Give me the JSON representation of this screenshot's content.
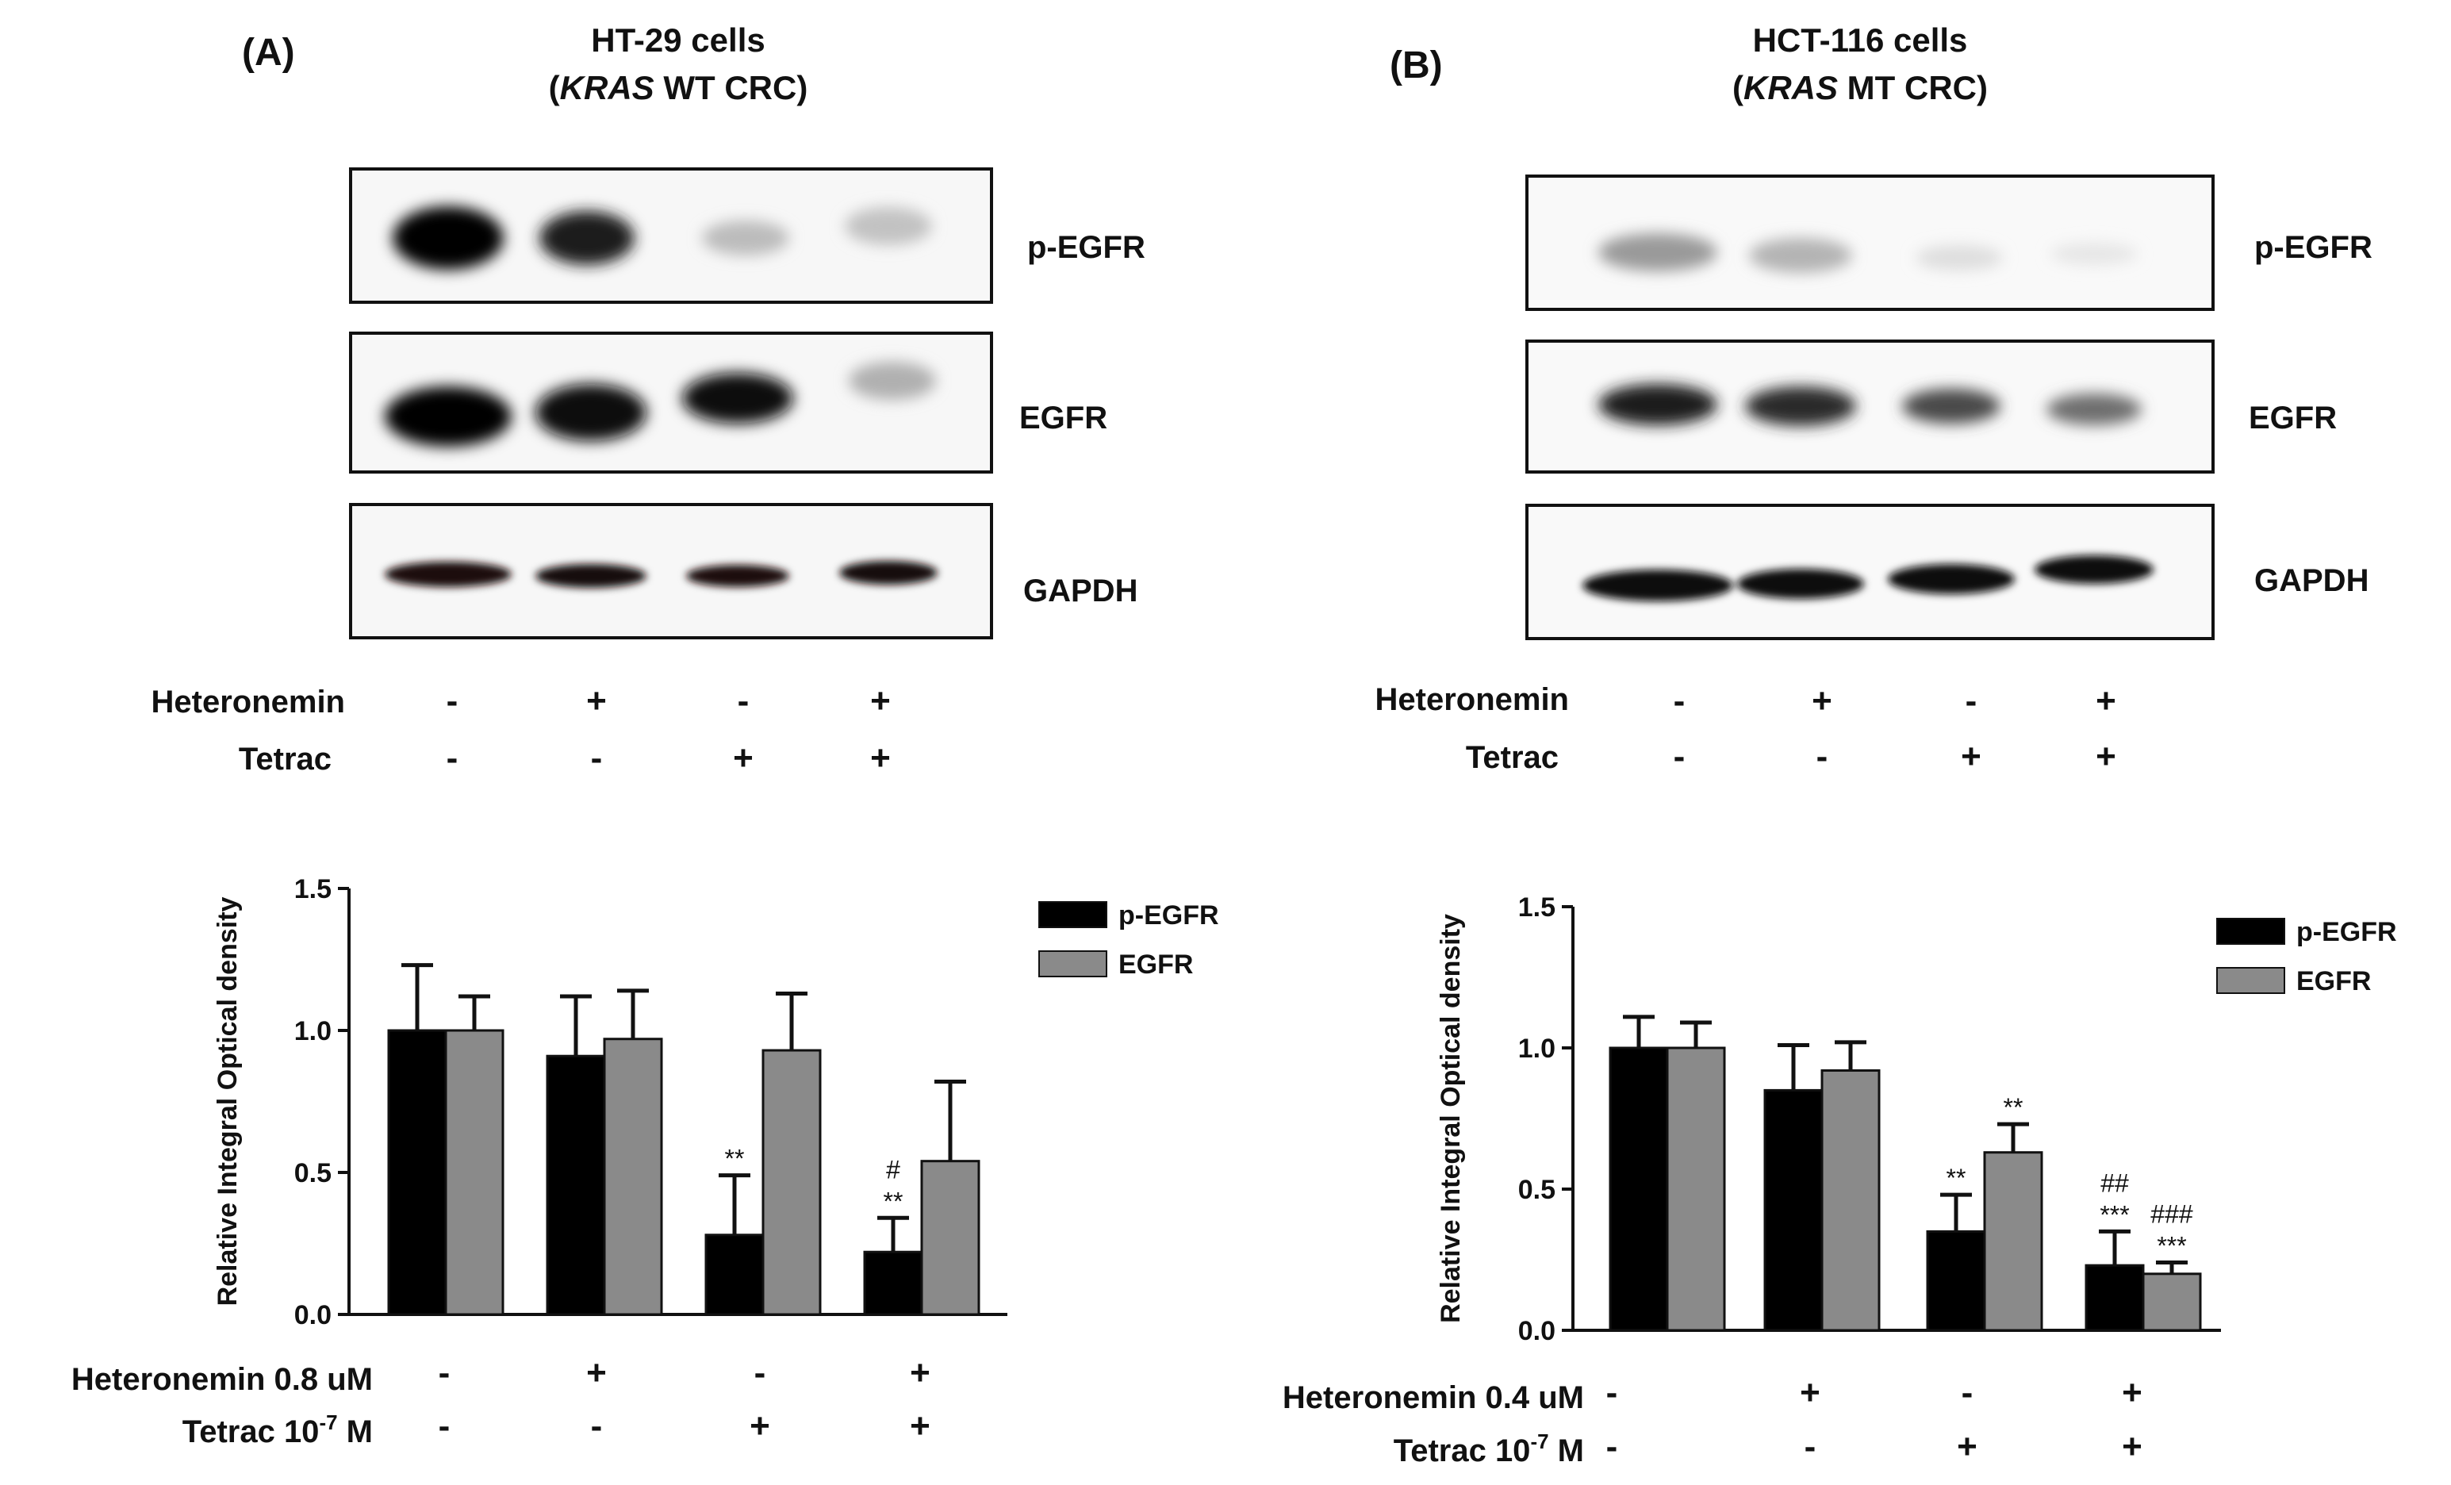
{
  "panel_a": {
    "label": "(A)",
    "title_line1": "HT-29 cells",
    "title_line2_italic": "KRAS",
    "title_line2_rest": " WT CRC",
    "blot_labels": [
      "p-EGFR",
      "EGFR",
      "GAPDH"
    ],
    "row1_label": "Heteronemin",
    "row2_label": "Tetrac",
    "row1_signs": [
      "-",
      "+",
      "-",
      "+"
    ],
    "row2_signs": [
      "-",
      "-",
      "+",
      "+"
    ],
    "chart_row1_label": "Heteronemin  0.8  uM",
    "chart_row2_label_main": "Tetrac 10",
    "chart_row2_label_sup": "-7",
    "chart_row2_label_end": " M"
  },
  "panel_b": {
    "label": "(B)",
    "title_line1": "HCT-116 cells",
    "title_line2_italic": "KRAS",
    "title_line2_rest": " MT CRC",
    "blot_labels": [
      "p-EGFR",
      "EGFR",
      "GAPDH"
    ],
    "row1_label": "Heteronemin",
    "row2_label": "Tetrac",
    "row1_signs": [
      "-",
      "+",
      "-",
      "+"
    ],
    "row2_signs": [
      "-",
      "-",
      "+",
      "+"
    ],
    "chart_row1_label": "Heteronemin  0.4  uM",
    "chart_row2_label_main": "Tetrac 10",
    "chart_row2_label_sup": "-7",
    "chart_row2_label_end": " M"
  },
  "chart_data": [
    {
      "type": "bar",
      "ylabel": "Relative Integral Optical density",
      "ylim": [
        0,
        1.5
      ],
      "yticks": [
        "0.0",
        "0.5",
        "1.0",
        "1.5"
      ],
      "legend_placement": "top-right",
      "categories": [
        "Control",
        "Heteronemin",
        "Tetrac",
        "Heteronemin+Tetrac"
      ],
      "series": [
        {
          "name": "p-EGFR",
          "color": "#000000",
          "values": [
            1.0,
            0.91,
            0.28,
            0.22
          ],
          "errors": [
            0.23,
            0.21,
            0.21,
            0.12
          ],
          "annotations": [
            "",
            "",
            "**",
            "#\n**"
          ]
        },
        {
          "name": "EGFR",
          "color": "#8a8a8a",
          "values": [
            1.0,
            0.97,
            0.93,
            0.54
          ],
          "errors": [
            0.12,
            0.17,
            0.2,
            0.28
          ],
          "annotations": [
            "",
            "",
            "",
            ""
          ]
        }
      ]
    },
    {
      "type": "bar",
      "ylabel": "Relative Integral Optical density",
      "ylim": [
        0,
        1.5
      ],
      "yticks": [
        "0.0",
        "0.5",
        "1.0",
        "1.5"
      ],
      "legend_placement": "top-right",
      "categories": [
        "Control",
        "Heteronemin",
        "Tetrac",
        "Heteronemin+Tetrac"
      ],
      "series": [
        {
          "name": "p-EGFR",
          "color": "#000000",
          "values": [
            1.0,
            0.85,
            0.35,
            0.23
          ],
          "errors": [
            0.11,
            0.16,
            0.13,
            0.12
          ],
          "annotations": [
            "",
            "",
            "**",
            "##\n***"
          ]
        },
        {
          "name": "EGFR",
          "color": "#8a8a8a",
          "values": [
            1.0,
            0.92,
            0.63,
            0.2
          ],
          "errors": [
            0.09,
            0.1,
            0.1,
            0.04
          ],
          "annotations": [
            "",
            "",
            "**",
            "###\n***"
          ]
        }
      ]
    }
  ]
}
